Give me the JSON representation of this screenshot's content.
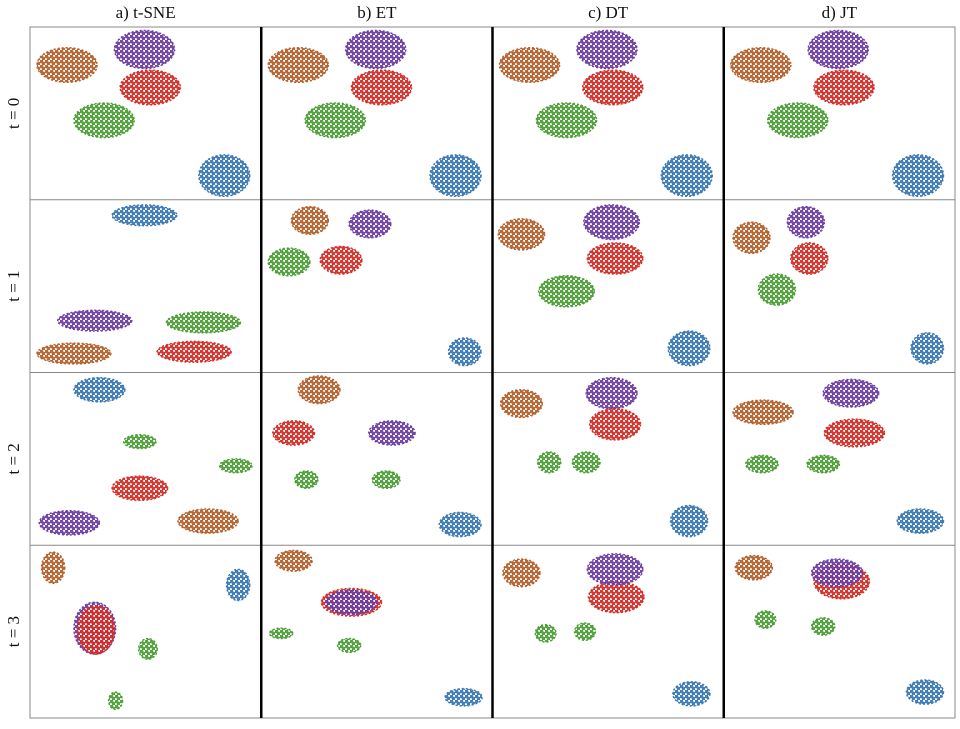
{
  "column_titles": [
    "a) t-SNE",
    "b) ET",
    "c) DT",
    "d) JT"
  ],
  "row_labels": [
    "t = 0",
    "t = 1",
    "t = 2",
    "t = 3"
  ],
  "chart_data": [
    {
      "type": "scatter",
      "xlim": [
        0,
        100
      ],
      "ylim": [
        0,
        100
      ],
      "series": [
        {
          "color": "#b5612c",
          "x": 16,
          "y": 78,
          "rx": 13,
          "ry": 10
        },
        {
          "color": "#6d3fa3",
          "x": 49.5,
          "y": 87,
          "rx": 13,
          "ry": 11
        },
        {
          "color": "#d62d27",
          "x": 52,
          "y": 65,
          "rx": 13,
          "ry": 10
        },
        {
          "color": "#4d9e37",
          "x": 32,
          "y": 46,
          "rx": 13,
          "ry": 10
        },
        {
          "color": "#3b78b4",
          "x": 84,
          "y": 14,
          "rx": 11,
          "ry": 12
        }
      ]
    },
    {
      "type": "scatter",
      "xlim": [
        0,
        100
      ],
      "ylim": [
        0,
        100
      ],
      "series": [
        {
          "color": "#b5612c",
          "x": 16,
          "y": 78,
          "rx": 13,
          "ry": 10
        },
        {
          "color": "#6d3fa3",
          "x": 49.5,
          "y": 87,
          "rx": 13,
          "ry": 11
        },
        {
          "color": "#d62d27",
          "x": 52,
          "y": 65,
          "rx": 13,
          "ry": 10
        },
        {
          "color": "#4d9e37",
          "x": 32,
          "y": 46,
          "rx": 13,
          "ry": 10
        },
        {
          "color": "#3b78b4",
          "x": 84,
          "y": 14,
          "rx": 11,
          "ry": 12
        }
      ]
    },
    {
      "type": "scatter",
      "xlim": [
        0,
        100
      ],
      "ylim": [
        0,
        100
      ],
      "series": [
        {
          "color": "#b5612c",
          "x": 16,
          "y": 78,
          "rx": 13,
          "ry": 10
        },
        {
          "color": "#6d3fa3",
          "x": 49.5,
          "y": 87,
          "rx": 13,
          "ry": 11
        },
        {
          "color": "#d62d27",
          "x": 52,
          "y": 65,
          "rx": 13,
          "ry": 10
        },
        {
          "color": "#4d9e37",
          "x": 32,
          "y": 46,
          "rx": 13,
          "ry": 10
        },
        {
          "color": "#3b78b4",
          "x": 84,
          "y": 14,
          "rx": 11,
          "ry": 12
        }
      ]
    },
    {
      "type": "scatter",
      "xlim": [
        0,
        100
      ],
      "ylim": [
        0,
        100
      ],
      "series": [
        {
          "color": "#b5612c",
          "x": 16,
          "y": 78,
          "rx": 13,
          "ry": 10
        },
        {
          "color": "#6d3fa3",
          "x": 49.5,
          "y": 87,
          "rx": 13,
          "ry": 11
        },
        {
          "color": "#d62d27",
          "x": 52,
          "y": 65,
          "rx": 13,
          "ry": 10
        },
        {
          "color": "#4d9e37",
          "x": 32,
          "y": 46,
          "rx": 13,
          "ry": 10
        },
        {
          "color": "#3b78b4",
          "x": 84,
          "y": 14,
          "rx": 11,
          "ry": 12
        }
      ]
    },
    {
      "type": "scatter",
      "xlim": [
        0,
        100
      ],
      "ylim": [
        0,
        100
      ],
      "series": [
        {
          "color": "#3b78b4",
          "x": 49.5,
          "y": 91,
          "rx": 14,
          "ry": 6
        },
        {
          "color": "#6d3fa3",
          "x": 28,
          "y": 30,
          "rx": 16,
          "ry": 6
        },
        {
          "color": "#4d9e37",
          "x": 75,
          "y": 29,
          "rx": 16,
          "ry": 6
        },
        {
          "color": "#b5612c",
          "x": 19,
          "y": 11,
          "rx": 16,
          "ry": 6
        },
        {
          "color": "#d62d27",
          "x": 71,
          "y": 12,
          "rx": 16,
          "ry": 6
        }
      ]
    },
    {
      "type": "scatter",
      "xlim": [
        0,
        100
      ],
      "ylim": [
        0,
        100
      ],
      "series": [
        {
          "color": "#b5612c",
          "x": 21,
          "y": 88,
          "rx": 8,
          "ry": 8
        },
        {
          "color": "#6d3fa3",
          "x": 47,
          "y": 86,
          "rx": 9,
          "ry": 8
        },
        {
          "color": "#4d9e37",
          "x": 12,
          "y": 64,
          "rx": 9,
          "ry": 8
        },
        {
          "color": "#d62d27",
          "x": 34.5,
          "y": 65,
          "rx": 9,
          "ry": 8
        },
        {
          "color": "#3b78b4",
          "x": 88,
          "y": 12,
          "rx": 7,
          "ry": 8
        }
      ]
    },
    {
      "type": "scatter",
      "xlim": [
        0,
        100
      ],
      "ylim": [
        0,
        100
      ],
      "series": [
        {
          "color": "#b5612c",
          "x": 12.5,
          "y": 80,
          "rx": 10,
          "ry": 9
        },
        {
          "color": "#6d3fa3",
          "x": 51.5,
          "y": 87,
          "rx": 12,
          "ry": 10
        },
        {
          "color": "#d62d27",
          "x": 53,
          "y": 66,
          "rx": 12,
          "ry": 9
        },
        {
          "color": "#4d9e37",
          "x": 32,
          "y": 47,
          "rx": 12,
          "ry": 9
        },
        {
          "color": "#3b78b4",
          "x": 85,
          "y": 14,
          "rx": 9,
          "ry": 10
        }
      ]
    },
    {
      "type": "scatter",
      "xlim": [
        0,
        100
      ],
      "ylim": [
        0,
        100
      ],
      "series": [
        {
          "color": "#b5612c",
          "x": 12,
          "y": 78,
          "rx": 8,
          "ry": 9
        },
        {
          "color": "#6d3fa3",
          "x": 35.5,
          "y": 87,
          "rx": 8,
          "ry": 9
        },
        {
          "color": "#d62d27",
          "x": 37,
          "y": 66,
          "rx": 8,
          "ry": 9
        },
        {
          "color": "#4d9e37",
          "x": 23,
          "y": 48,
          "rx": 8,
          "ry": 9
        },
        {
          "color": "#3b78b4",
          "x": 88,
          "y": 14,
          "rx": 7,
          "ry": 9
        }
      ]
    },
    {
      "type": "scatter",
      "xlim": [
        0,
        100
      ],
      "ylim": [
        0,
        100
      ],
      "series": [
        {
          "color": "#3b78b4",
          "x": 30,
          "y": 90,
          "rx": 11,
          "ry": 7
        },
        {
          "color": "#4d9e37",
          "x": 47.5,
          "y": 60,
          "rx": 7,
          "ry": 4
        },
        {
          "color": "#4d9e37",
          "x": 89,
          "y": 46,
          "rx": 7,
          "ry": 4
        },
        {
          "color": "#d62d27",
          "x": 47.5,
          "y": 33,
          "rx": 12,
          "ry": 7
        },
        {
          "color": "#6d3fa3",
          "x": 17,
          "y": 13,
          "rx": 13,
          "ry": 7
        },
        {
          "color": "#b5612c",
          "x": 77,
          "y": 14,
          "rx": 13,
          "ry": 7
        }
      ]
    },
    {
      "type": "scatter",
      "xlim": [
        0,
        100
      ],
      "ylim": [
        0,
        100
      ],
      "series": [
        {
          "color": "#b5612c",
          "x": 25,
          "y": 90,
          "rx": 9,
          "ry": 8
        },
        {
          "color": "#d62d27",
          "x": 14,
          "y": 65,
          "rx": 9,
          "ry": 7
        },
        {
          "color": "#6d3fa3",
          "x": 56.5,
          "y": 65,
          "rx": 10,
          "ry": 7
        },
        {
          "color": "#4d9e37",
          "x": 19.5,
          "y": 38,
          "rx": 5,
          "ry": 5
        },
        {
          "color": "#4d9e37",
          "x": 54,
          "y": 38,
          "rx": 6,
          "ry": 5
        },
        {
          "color": "#3b78b4",
          "x": 86,
          "y": 12,
          "rx": 9,
          "ry": 7
        }
      ]
    },
    {
      "type": "scatter",
      "xlim": [
        0,
        100
      ],
      "ylim": [
        0,
        100
      ],
      "series": [
        {
          "color": "#b5612c",
          "x": 12.5,
          "y": 82,
          "rx": 9,
          "ry": 8
        },
        {
          "color": "#6d3fa3",
          "x": 51.5,
          "y": 88,
          "rx": 11,
          "ry": 9
        },
        {
          "color": "#d62d27",
          "x": 53,
          "y": 70,
          "rx": 11,
          "ry": 9
        },
        {
          "color": "#4d9e37",
          "x": 24.5,
          "y": 48,
          "rx": 5,
          "ry": 6
        },
        {
          "color": "#4d9e37",
          "x": 40.5,
          "y": 48,
          "rx": 6,
          "ry": 6
        },
        {
          "color": "#3b78b4",
          "x": 85,
          "y": 14,
          "rx": 8,
          "ry": 9
        }
      ]
    },
    {
      "type": "scatter",
      "xlim": [
        0,
        100
      ],
      "ylim": [
        0,
        100
      ],
      "series": [
        {
          "color": "#b5612c",
          "x": 17,
          "y": 77,
          "rx": 13,
          "ry": 7
        },
        {
          "color": "#6d3fa3",
          "x": 55,
          "y": 88,
          "rx": 12,
          "ry": 8
        },
        {
          "color": "#d62d27",
          "x": 56.5,
          "y": 65,
          "rx": 13,
          "ry": 8
        },
        {
          "color": "#4d9e37",
          "x": 16.5,
          "y": 47,
          "rx": 7,
          "ry": 5
        },
        {
          "color": "#4d9e37",
          "x": 43,
          "y": 47,
          "rx": 7,
          "ry": 5
        },
        {
          "color": "#3b78b4",
          "x": 85,
          "y": 14,
          "rx": 10,
          "ry": 7
        }
      ]
    },
    {
      "type": "scatter",
      "xlim": [
        0,
        100
      ],
      "ylim": [
        0,
        100
      ],
      "series": [
        {
          "color": "#b5612c",
          "x": 10,
          "y": 87,
          "rx": 5,
          "ry": 9
        },
        {
          "color": "#3b78b4",
          "x": 90,
          "y": 77,
          "rx": 5,
          "ry": 9
        },
        {
          "color": "#6d3fa3",
          "x": 28,
          "y": 52,
          "rx": 9,
          "ry": 15
        },
        {
          "color": "#d62d27",
          "x": 28.5,
          "y": 51,
          "rx": 8,
          "ry": 14
        },
        {
          "color": "#4d9e37",
          "x": 51,
          "y": 40,
          "rx": 4,
          "ry": 6
        },
        {
          "color": "#4d9e37",
          "x": 37,
          "y": 10,
          "rx": 3,
          "ry": 5
        }
      ]
    },
    {
      "type": "scatter",
      "xlim": [
        0,
        100
      ],
      "ylim": [
        0,
        100
      ],
      "series": [
        {
          "color": "#b5612c",
          "x": 14,
          "y": 91,
          "rx": 8,
          "ry": 6
        },
        {
          "color": "#d62d27",
          "x": 39,
          "y": 67,
          "rx": 13,
          "ry": 8
        },
        {
          "color": "#6d3fa3",
          "x": 39,
          "y": 67,
          "rx": 11,
          "ry": 7
        },
        {
          "color": "#4d9e37",
          "x": 8.6,
          "y": 49,
          "rx": 5,
          "ry": 3
        },
        {
          "color": "#4d9e37",
          "x": 38,
          "y": 42,
          "rx": 5,
          "ry": 4
        },
        {
          "color": "#3b78b4",
          "x": 87.5,
          "y": 12,
          "rx": 8,
          "ry": 5
        }
      ]
    },
    {
      "type": "scatter",
      "xlim": [
        0,
        100
      ],
      "ylim": [
        0,
        100
      ],
      "series": [
        {
          "color": "#b5612c",
          "x": 12.5,
          "y": 84,
          "rx": 8,
          "ry": 8
        },
        {
          "color": "#d62d27",
          "x": 53.5,
          "y": 70,
          "rx": 12,
          "ry": 9
        },
        {
          "color": "#6d3fa3",
          "x": 53,
          "y": 86,
          "rx": 12,
          "ry": 9
        },
        {
          "color": "#4d9e37",
          "x": 23,
          "y": 49,
          "rx": 4.5,
          "ry": 5
        },
        {
          "color": "#4d9e37",
          "x": 40,
          "y": 50,
          "rx": 4.5,
          "ry": 5
        },
        {
          "color": "#3b78b4",
          "x": 86,
          "y": 14,
          "rx": 8,
          "ry": 7
        }
      ]
    },
    {
      "type": "scatter",
      "xlim": [
        0,
        100
      ],
      "ylim": [
        0,
        100
      ],
      "series": [
        {
          "color": "#b5612c",
          "x": 13,
          "y": 87,
          "rx": 8,
          "ry": 7
        },
        {
          "color": "#d62d27",
          "x": 51,
          "y": 79,
          "rx": 12,
          "ry": 10
        },
        {
          "color": "#6d3fa3",
          "x": 49,
          "y": 84,
          "rx": 11,
          "ry": 8
        },
        {
          "color": "#4d9e37",
          "x": 18,
          "y": 57,
          "rx": 4.5,
          "ry": 5
        },
        {
          "color": "#4d9e37",
          "x": 43,
          "y": 53,
          "rx": 5,
          "ry": 5
        },
        {
          "color": "#3b78b4",
          "x": 87,
          "y": 15,
          "rx": 8,
          "ry": 7
        }
      ]
    }
  ]
}
